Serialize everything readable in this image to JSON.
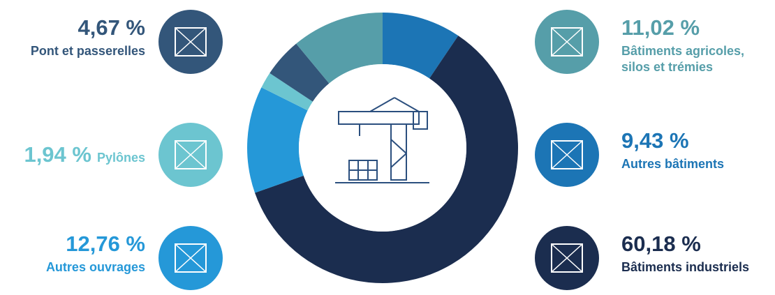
{
  "chart_data": {
    "type": "pie",
    "categories": [
      "Autres bâtiments",
      "Bâtiments industriels",
      "Autres ouvrages",
      "Pylônes",
      "Pont et passerelles",
      "Bâtiments agricoles, silos et trémies"
    ],
    "values": [
      9.43,
      60.18,
      12.76,
      1.94,
      4.67,
      11.02
    ],
    "value_labels": [
      "9,43 %",
      "60,18 %",
      "12,76 %",
      "1,94 %",
      "4,67 %",
      "11,02 %"
    ],
    "colors": [
      "#1c75b5",
      "#1b2d4f",
      "#2598d8",
      "#6cc5d0",
      "#33567a",
      "#569ea9"
    ]
  }
}
